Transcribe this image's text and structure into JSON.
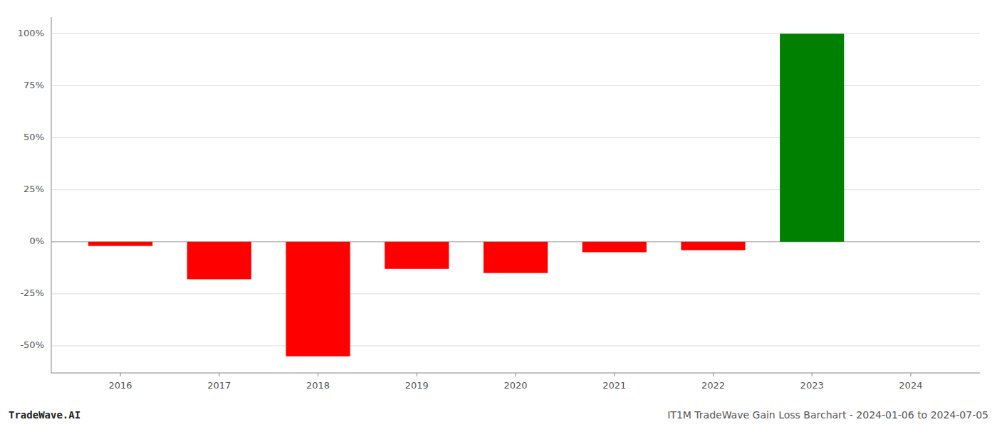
{
  "chart_data": {
    "type": "bar",
    "x": [
      2016,
      2017,
      2018,
      2019,
      2020,
      2021,
      2022,
      2023
    ],
    "values": [
      -2.0,
      -18.0,
      -55.0,
      -13.0,
      -15.0,
      -5.0,
      -4.0,
      100.0
    ],
    "colors": [
      "#ff0000",
      "#ff0000",
      "#ff0000",
      "#ff0000",
      "#ff0000",
      "#ff0000",
      "#ff0000",
      "#008000"
    ],
    "xlim": [
      2015.3,
      2024.7
    ],
    "xticks": [
      2016,
      2017,
      2018,
      2019,
      2020,
      2021,
      2022,
      2023,
      2024
    ],
    "ylim": [
      -63,
      108
    ],
    "yticks": [
      {
        "value": -50,
        "label": "-50%"
      },
      {
        "value": -25,
        "label": "-25%"
      },
      {
        "value": 0,
        "label": "0%"
      },
      {
        "value": 25,
        "label": "25%"
      },
      {
        "value": 50,
        "label": "50%"
      },
      {
        "value": 75,
        "label": "75%"
      },
      {
        "value": 100,
        "label": "100%"
      }
    ],
    "grid": true,
    "annotations": [
      "TradeWave.AI",
      "IT1M TradeWave Gain Loss Barchart - 2024-01-06 to 2024-07-05"
    ]
  }
}
